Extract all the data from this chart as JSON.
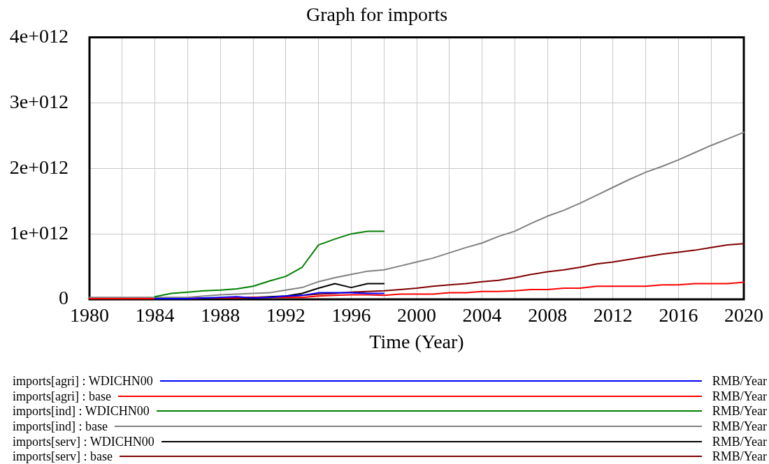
{
  "chart_data": {
    "type": "line",
    "title": "Graph for imports",
    "xlabel": "Time (Year)",
    "x": [
      1980,
      1981,
      1982,
      1983,
      1984,
      1985,
      1986,
      1987,
      1988,
      1989,
      1990,
      1991,
      1992,
      1993,
      1994,
      1995,
      1996,
      1997,
      1998,
      1999,
      2000,
      2001,
      2002,
      2003,
      2004,
      2005,
      2006,
      2007,
      2008,
      2009,
      2010,
      2011,
      2012,
      2013,
      2014,
      2015,
      2016,
      2017,
      2018,
      2019,
      2020
    ],
    "series": [
      {
        "name": "imports[agri] : WDICHN00",
        "color": "#0000ff",
        "values": [
          null,
          null,
          null,
          null,
          10000000000.0,
          10000000000.0,
          10000000000.0,
          20000000000.0,
          30000000000.0,
          40000000000.0,
          20000000000.0,
          30000000000.0,
          50000000000.0,
          60000000000.0,
          100000000000.0,
          100000000000.0,
          100000000000.0,
          90000000000.0,
          90000000000.0,
          null,
          null,
          null,
          null,
          null,
          null,
          null,
          null,
          null,
          null,
          null,
          null,
          null,
          null,
          null,
          null,
          null,
          null,
          null,
          null,
          null,
          null
        ]
      },
      {
        "name": "imports[agri] : base",
        "color": "#ff0000",
        "values": [
          10000000000.0,
          10000000000.0,
          10000000000.0,
          10000000000.0,
          10000000000.0,
          10000000000.0,
          10000000000.0,
          20000000000.0,
          20000000000.0,
          20000000000.0,
          30000000000.0,
          30000000000.0,
          30000000000.0,
          30000000000.0,
          50000000000.0,
          60000000000.0,
          70000000000.0,
          70000000000.0,
          60000000000.0,
          80000000000.0,
          80000000000.0,
          80000000000.0,
          100000000000.0,
          100000000000.0,
          120000000000.0,
          120000000000.0,
          130000000000.0,
          150000000000.0,
          150000000000.0,
          170000000000.0,
          170000000000.0,
          200000000000.0,
          200000000000.0,
          200000000000.0,
          200000000000.0,
          220000000000.0,
          220000000000.0,
          240000000000.0,
          240000000000.0,
          240000000000.0,
          260000000000.0
        ]
      },
      {
        "name": "imports[ind] : WDICHN00",
        "color": "#008000",
        "values": [
          null,
          null,
          null,
          null,
          40000000000.0,
          90000000000.0,
          110000000000.0,
          130000000000.0,
          140000000000.0,
          160000000000.0,
          200000000000.0,
          280000000000.0,
          350000000000.0,
          490000000000.0,
          830000000000.0,
          920000000000.0,
          1000000000000.0,
          1040000000000.0,
          1040000000000.0,
          null,
          null,
          null,
          null,
          null,
          null,
          null,
          null,
          null,
          null,
          null,
          null,
          null,
          null,
          null,
          null,
          null,
          null,
          null,
          null,
          null,
          null
        ]
      },
      {
        "name": "imports[ind] : base",
        "color": "#808080",
        "values": [
          30000000000.0,
          30000000000.0,
          30000000000.0,
          30000000000.0,
          30000000000.0,
          30000000000.0,
          30000000000.0,
          50000000000.0,
          70000000000.0,
          80000000000.0,
          90000000000.0,
          100000000000.0,
          140000000000.0,
          180000000000.0,
          270000000000.0,
          330000000000.0,
          380000000000.0,
          430000000000.0,
          450000000000.0,
          510000000000.0,
          570000000000.0,
          630000000000.0,
          710000000000.0,
          790000000000.0,
          860000000000.0,
          960000000000.0,
          1040000000000.0,
          1160000000000.0,
          1270000000000.0,
          1360000000000.0,
          1470000000000.0,
          1590000000000.0,
          1710000000000.0,
          1830000000000.0,
          1940000000000.0,
          2030000000000.0,
          2130000000000.0,
          2240000000000.0,
          2350000000000.0,
          2450000000000.0,
          2550000000000.0
        ]
      },
      {
        "name": "imports[serv] : WDICHN00",
        "color": "#000000",
        "values": [
          null,
          null,
          null,
          null,
          0,
          0,
          0,
          0,
          0,
          10000000000.0,
          30000000000.0,
          40000000000.0,
          50000000000.0,
          90000000000.0,
          170000000000.0,
          240000000000.0,
          180000000000.0,
          240000000000.0,
          240000000000.0,
          null,
          null,
          null,
          null,
          null,
          null,
          null,
          null,
          null,
          null,
          null,
          null,
          null,
          null,
          null,
          null,
          null,
          null,
          null,
          null,
          null,
          null
        ]
      },
      {
        "name": "imports[serv] : base",
        "color": "#800000",
        "values": [
          null,
          null,
          null,
          null,
          null,
          null,
          null,
          null,
          20000000000.0,
          20000000000.0,
          30000000000.0,
          30000000000.0,
          40000000000.0,
          60000000000.0,
          80000000000.0,
          90000000000.0,
          110000000000.0,
          120000000000.0,
          130000000000.0,
          150000000000.0,
          170000000000.0,
          200000000000.0,
          220000000000.0,
          240000000000.0,
          270000000000.0,
          290000000000.0,
          330000000000.0,
          380000000000.0,
          420000000000.0,
          450000000000.0,
          490000000000.0,
          540000000000.0,
          570000000000.0,
          610000000000.0,
          650000000000.0,
          690000000000.0,
          720000000000.0,
          750000000000.0,
          790000000000.0,
          830000000000.0,
          850000000000.0
        ]
      }
    ],
    "xlim": [
      1980,
      2020
    ],
    "ylim": [
      0,
      4000000000000.0
    ],
    "xticks": [
      1980,
      {
        "value": 1982,
        "label": null
      },
      1984,
      {
        "value": 1986,
        "label": null
      },
      1988,
      {
        "value": 1990,
        "label": null
      },
      1992,
      {
        "value": 1994,
        "label": null
      },
      1996,
      {
        "value": 1998,
        "label": null
      },
      2000,
      {
        "value": 2002,
        "label": null
      },
      2004,
      {
        "value": 2006,
        "label": null
      },
      2008,
      {
        "value": 2010,
        "label": null
      },
      2012,
      {
        "value": 2014,
        "label": null
      },
      2016,
      {
        "value": 2018,
        "label": null
      },
      2020
    ],
    "yticks": [
      0,
      {
        "value": 1000000000000.0,
        "label": "1e+012"
      },
      {
        "value": 2000000000000.0,
        "label": "2e+012"
      },
      {
        "value": 3000000000000.0,
        "label": "3e+012"
      },
      {
        "value": 4000000000000.0,
        "label": "4e+012"
      }
    ],
    "grid": true,
    "legend": "bottom",
    "annotations": [
      "RMB/Year",
      "RMB/Year",
      "RMB/Year",
      "RMB/Year",
      "RMB/Year",
      "RMB/Year"
    ]
  }
}
